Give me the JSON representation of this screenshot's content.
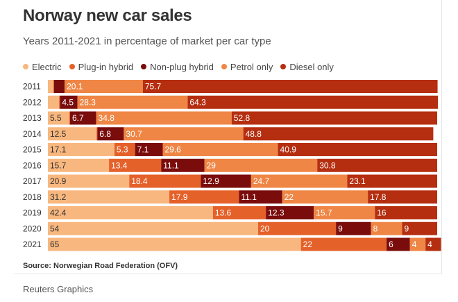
{
  "title": "Norway new car sales",
  "subtitle": "Years 2011-2021 in percentage of market per car type",
  "source": "Source: Norwegian Road Federation (OFV)",
  "footer": "Reuters Graphics",
  "chart_data": {
    "type": "bar",
    "orientation": "horizontal",
    "stacked": true,
    "grid": false,
    "legend_position": "top-left",
    "categories": [
      "2011",
      "2012",
      "2013",
      "2014",
      "2015",
      "2016",
      "2017",
      "2018",
      "2019",
      "2020",
      "2021"
    ],
    "series": [
      {
        "name": "Electric",
        "color": "#f8b77e",
        "values": [
          1.4,
          2.9,
          5.5,
          12.5,
          17.1,
          15.7,
          20.9,
          31.2,
          42.4,
          54,
          65
        ],
        "labels": [
          "",
          "",
          "5.5",
          "12.5",
          "17.1",
          "15.7",
          "20.9",
          "31.2",
          "42.4",
          "54",
          "65"
        ]
      },
      {
        "name": "Plug-in hybrid",
        "color": "#e5612a",
        "values": [
          0.2,
          0.2,
          0.2,
          0.2,
          5.3,
          13.4,
          18.4,
          17.9,
          13.6,
          20,
          22
        ],
        "labels": [
          "",
          "",
          "",
          "",
          "5.3",
          "13.4",
          "18.4",
          "17.9",
          "13.6",
          "20",
          "22"
        ]
      },
      {
        "name": "Non-plug hybrid",
        "color": "#7a0c0c",
        "values": [
          2.7,
          4.5,
          6.7,
          6.8,
          7.1,
          11.1,
          12.9,
          11.1,
          12.3,
          9,
          6
        ],
        "labels": [
          "",
          "4.5",
          "6.7",
          "6.8",
          "7.1",
          "11.1",
          "12.9",
          "11.1",
          "12.3",
          "9",
          "6"
        ]
      },
      {
        "name": "Petrol only",
        "color": "#ef8645",
        "values": [
          20.1,
          28.3,
          34.8,
          30.7,
          29.6,
          29,
          24.7,
          22,
          15.7,
          8,
          4
        ],
        "labels": [
          "20.1",
          "28.3",
          "34.8",
          "30.7",
          "29.6",
          "29",
          "24.7",
          "22",
          "15.7",
          "8",
          "4"
        ]
      },
      {
        "name": "Diesel only",
        "color": "#b52e10",
        "values": [
          75.7,
          64.3,
          52.8,
          48.8,
          40.9,
          30.8,
          23.1,
          17.8,
          16,
          9,
          4
        ],
        "labels": [
          "75.7",
          "64.3",
          "52.8",
          "48.8",
          "40.9",
          "30.8",
          "23.1",
          "17.8",
          "16",
          "9",
          "4"
        ]
      }
    ],
    "xlim": [
      0,
      100
    ],
    "label_color_light": "#ffffff"
  }
}
